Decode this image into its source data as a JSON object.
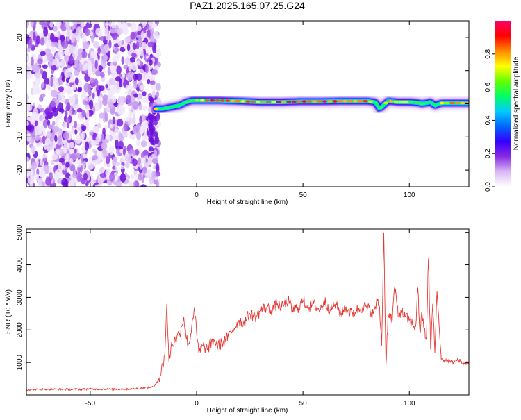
{
  "title": "PAZ1.2025.165.07.25.G24",
  "chart_data": [
    {
      "type": "heatmap",
      "name": "spectrogram",
      "xlabel": "Height of straight line (km)",
      "ylabel": "Frequency (Hz)",
      "xlim": [
        -80,
        128
      ],
      "ylim": [
        -25,
        25
      ],
      "xticks": [
        -50,
        0,
        50,
        100
      ],
      "yticks": [
        -20,
        -10,
        0,
        10,
        20
      ],
      "colorbar": {
        "label": "Normalized spectral amplitude",
        "range": [
          0,
          1
        ],
        "ticks": [
          0.0,
          0.2,
          0.4,
          0.6,
          0.8
        ],
        "tick_labels": [
          "0.0",
          "0.2",
          "0.4",
          "0.6",
          "0.8"
        ],
        "colors": [
          "#ffffff",
          "#d9b8f5",
          "#8a2be2",
          "#3300ff",
          "#0066ff",
          "#00ccff",
          "#00ff66",
          "#66ff00",
          "#ffff00",
          "#ff8800",
          "#ff0000",
          "#ff0066"
        ]
      },
      "noise_region": {
        "x_range": [
          -80,
          -19
        ],
        "freq_range": [
          -25,
          25
        ],
        "amplitude": 0.15
      },
      "signal_ridge": {
        "x": [
          -19,
          -16,
          -12,
          -8,
          -5,
          -2,
          0,
          5,
          10,
          20,
          30,
          40,
          50,
          60,
          70,
          80,
          84,
          86,
          90,
          95,
          100,
          104,
          106,
          110,
          112,
          115,
          120,
          128
        ],
        "frequency": [
          -1.5,
          -1.5,
          -1.0,
          -0.5,
          0.5,
          1.0,
          1.0,
          1.0,
          1.0,
          0.8,
          0.5,
          0.5,
          0.7,
          0.7,
          0.8,
          0.8,
          0.5,
          -1.5,
          0.8,
          0.5,
          0.5,
          0.3,
          0.0,
          0.5,
          -0.5,
          0.2,
          0.2,
          0.2
        ],
        "amplitude": [
          0.7,
          0.6,
          0.6,
          0.55,
          0.6,
          0.7,
          0.75,
          0.85,
          0.9,
          0.85,
          0.8,
          0.85,
          0.9,
          0.9,
          0.85,
          0.9,
          0.6,
          0.5,
          0.7,
          0.6,
          0.7,
          0.5,
          0.6,
          0.5,
          0.4,
          0.7,
          0.8,
          0.8
        ]
      }
    },
    {
      "type": "line",
      "name": "snr",
      "xlabel": "Height of straight line (km)",
      "ylabel": "SNR (10 * v/v)",
      "xlim": [
        -80,
        128
      ],
      "ylim": [
        0,
        5100
      ],
      "xticks": [
        -50,
        0,
        50,
        100
      ],
      "yticks": [
        1000,
        2000,
        3000,
        4000,
        5000
      ],
      "color": "#e53935",
      "series": [
        {
          "x": [
            -80,
            -70,
            -60,
            -50,
            -40,
            -30,
            -20,
            -17,
            -15,
            -14,
            -13,
            -12,
            -10,
            -8,
            -6,
            -5,
            -4,
            -3,
            -2,
            -1,
            0,
            1,
            3,
            5,
            8,
            10,
            12,
            15,
            17,
            20,
            22,
            25,
            28,
            30,
            33,
            35,
            38,
            40,
            43,
            45,
            48,
            50,
            53,
            55,
            58,
            60,
            63,
            65,
            68,
            70,
            73,
            75,
            78,
            80,
            83,
            85,
            86,
            87,
            88,
            89,
            90,
            92,
            93,
            95,
            96,
            98,
            100,
            101,
            103,
            104,
            105,
            106,
            107,
            108,
            109,
            110,
            111,
            112,
            113,
            115,
            118,
            120,
            123,
            125,
            128
          ],
          "y": [
            160,
            175,
            170,
            180,
            175,
            185,
            250,
            600,
            1200,
            2800,
            1000,
            1500,
            1700,
            1900,
            2400,
            1800,
            1600,
            1700,
            2300,
            2700,
            1900,
            1300,
            1500,
            1400,
            1700,
            1500,
            1600,
            1800,
            2000,
            2300,
            2200,
            2500,
            2400,
            2600,
            2700,
            2600,
            2800,
            2700,
            2900,
            2600,
            2700,
            2900,
            2700,
            2800,
            2600,
            2900,
            2600,
            2800,
            2500,
            2700,
            2500,
            2600,
            2700,
            2700,
            2500,
            2900,
            2700,
            1500,
            5000,
            900,
            2500,
            2300,
            3300,
            2400,
            2600,
            2400,
            2300,
            2200,
            2100,
            3300,
            1900,
            2500,
            2000,
            1700,
            4200,
            1400,
            2800,
            1300,
            3200,
            1100,
            1050,
            1000,
            1100,
            950,
            1000
          ]
        }
      ]
    }
  ]
}
